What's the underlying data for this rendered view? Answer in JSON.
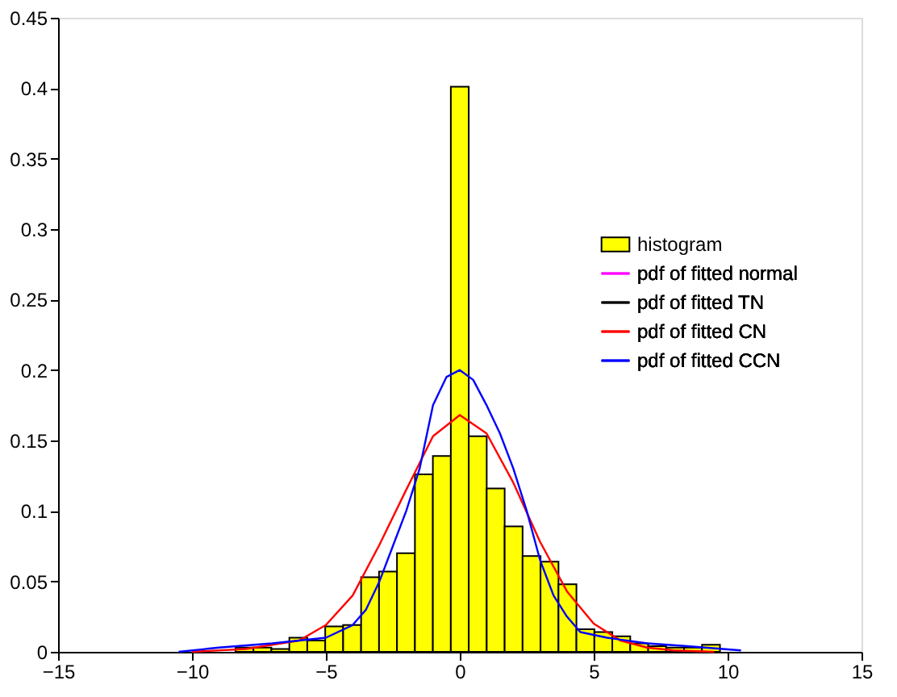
{
  "chart_data": {
    "type": "histogram",
    "xlim": [
      -15,
      15
    ],
    "ylim": [
      0,
      0.45
    ],
    "xticks": [
      -15,
      -10,
      -5,
      0,
      5,
      10,
      15
    ],
    "yticks": [
      0,
      0.05,
      0.1,
      0.15,
      0.2,
      0.25,
      0.3,
      0.35,
      0.4,
      0.45
    ],
    "grid": false,
    "legend": "right",
    "series": [
      {
        "name": "histogram",
        "color": "#ffff00",
        "bins": [
          -8.375,
          -7.705,
          -7.035,
          -6.365,
          -5.695,
          -5.025,
          -4.355,
          -3.685,
          -3.015,
          -2.345,
          -1.675,
          -1.005,
          -0.335,
          0.335,
          1.005,
          1.675,
          2.345,
          3.015,
          3.685,
          4.355,
          5.025,
          5.695,
          6.365,
          7.035,
          7.705,
          8.375,
          9.045,
          9.715
        ],
        "values": [
          0.003,
          0.003,
          0.002,
          0.01,
          0.008,
          0.018,
          0.019,
          0.053,
          0.057,
          0.07,
          0.126,
          0.139,
          0.401,
          0.153,
          0.116,
          0.089,
          0.068,
          0.064,
          0.048,
          0.016,
          0.014,
          0.011,
          0.006,
          0.004,
          0.003,
          0.003,
          0.005
        ]
      },
      {
        "name": " pdf of fitted normal",
        "type": "line",
        "color": "#ff00ff"
      },
      {
        "name": "pdf of fitted TN",
        "type": "line",
        "color": "#000000"
      },
      {
        "name": "pdf of fitted CN",
        "type": "line",
        "color": "#ff0000",
        "x": [
          -10,
          -8,
          -6,
          -5,
          -4,
          -3,
          -2,
          -1,
          0,
          1,
          2,
          3,
          4,
          5,
          6,
          7,
          8,
          9.5
        ],
        "values": [
          0,
          0.002,
          0.008,
          0.019,
          0.04,
          0.076,
          0.115,
          0.153,
          0.168,
          0.155,
          0.12,
          0.078,
          0.043,
          0.02,
          0.008,
          0.003,
          0.001,
          0
        ]
      },
      {
        "name": "pdf of fitted CCN",
        "type": "line",
        "color": "#0000ff",
        "x": [
          -10.5,
          -9,
          -7,
          -6,
          -5,
          -4,
          -3.5,
          -3,
          -2.5,
          -2,
          -1.5,
          -1,
          -0.5,
          0,
          0.5,
          1,
          1.5,
          2,
          2.5,
          3,
          3.5,
          4,
          4.5,
          5.5,
          7,
          8.5,
          10.5
        ],
        "values": [
          0,
          0.003,
          0.006,
          0.008,
          0.01,
          0.019,
          0.03,
          0.05,
          0.075,
          0.1,
          0.13,
          0.175,
          0.195,
          0.2,
          0.193,
          0.175,
          0.155,
          0.13,
          0.1,
          0.065,
          0.04,
          0.025,
          0.014,
          0.01,
          0.006,
          0.004,
          0.001
        ]
      }
    ]
  }
}
